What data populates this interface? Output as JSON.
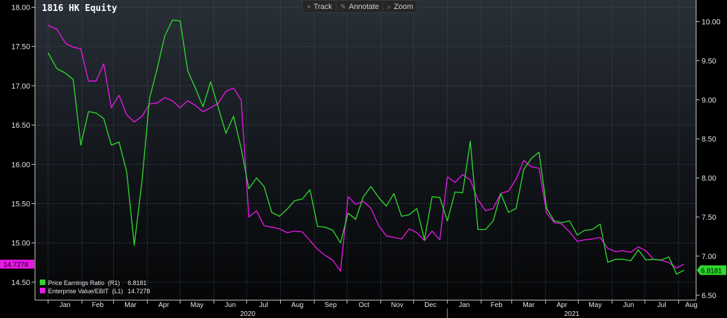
{
  "toolbar": {
    "track_label": "Track",
    "annotate_label": "Annotate",
    "zoom_label": "Zoom",
    "track_icon": "crosshair-icon",
    "annotate_icon": "pencil-icon",
    "zoom_icon": "magnifier-icon"
  },
  "chart_data": {
    "type": "line",
    "title": "1816 HK Equity",
    "grid": true,
    "legend_position": "bottom-left",
    "left_axis": {
      "range": [
        14.35,
        18.0
      ],
      "ticks": [
        "18.00",
        "17.50",
        "17.00",
        "16.50",
        "16.00",
        "15.50",
        "15.00",
        "14.50"
      ]
    },
    "right_axis": {
      "range": [
        6.45,
        10.2
      ],
      "ticks": [
        "10.00",
        "9.50",
        "9.00",
        "8.50",
        "8.00",
        "7.50",
        "7.00",
        "6.50"
      ]
    },
    "x_axis": {
      "months": [
        "Jan",
        "Feb",
        "Mar",
        "Apr",
        "May",
        "Jun",
        "Jul",
        "Aug",
        "Sep",
        "Oct",
        "Nov",
        "Dec",
        "Jan",
        "Feb",
        "Mar",
        "Apr",
        "May",
        "Jun",
        "Jul",
        "Aug"
      ],
      "years": [
        "2020",
        "2021"
      ]
    },
    "series": [
      {
        "name": "Price Earnings Ratio",
        "axis": "R1",
        "legend_label": "Price Earnings Ratio  (R1)",
        "last_value": "6.8181",
        "color": "#2ed62e",
        "points": [
          [
            "2020-01-01",
            9.6
          ],
          [
            "2020-01-09",
            9.4
          ],
          [
            "2020-01-17",
            9.34
          ],
          [
            "2020-01-24",
            9.26
          ],
          [
            "2020-01-31",
            8.42
          ],
          [
            "2020-02-07",
            8.85
          ],
          [
            "2020-02-14",
            8.83
          ],
          [
            "2020-02-21",
            8.76
          ],
          [
            "2020-02-28",
            8.42
          ],
          [
            "2020-03-06",
            8.46
          ],
          [
            "2020-03-13",
            8.08
          ],
          [
            "2020-03-20",
            7.14
          ],
          [
            "2020-03-27",
            7.95
          ],
          [
            "2020-04-03",
            9.02
          ],
          [
            "2020-04-10",
            9.4
          ],
          [
            "2020-04-17",
            9.82
          ],
          [
            "2020-04-24",
            10.02
          ],
          [
            "2020-05-01",
            10.01
          ],
          [
            "2020-05-08",
            9.37
          ],
          [
            "2020-05-15",
            9.15
          ],
          [
            "2020-05-22",
            8.91
          ],
          [
            "2020-05-29",
            9.23
          ],
          [
            "2020-06-05",
            8.9
          ],
          [
            "2020-06-12",
            8.57
          ],
          [
            "2020-06-19",
            8.79
          ],
          [
            "2020-06-26",
            8.38
          ],
          [
            "2020-07-03",
            7.86
          ],
          [
            "2020-07-10",
            8.0
          ],
          [
            "2020-07-17",
            7.89
          ],
          [
            "2020-07-24",
            7.56
          ],
          [
            "2020-07-31",
            7.51
          ],
          [
            "2020-08-07",
            7.6
          ],
          [
            "2020-08-14",
            7.71
          ],
          [
            "2020-08-21",
            7.73
          ],
          [
            "2020-08-28",
            7.85
          ],
          [
            "2020-09-04",
            7.38
          ],
          [
            "2020-09-11",
            7.37
          ],
          [
            "2020-09-18",
            7.33
          ],
          [
            "2020-09-25",
            7.17
          ],
          [
            "2020-10-02",
            7.55
          ],
          [
            "2020-10-09",
            7.47
          ],
          [
            "2020-10-16",
            7.76
          ],
          [
            "2020-10-23",
            7.89
          ],
          [
            "2020-10-30",
            7.75
          ],
          [
            "2020-11-06",
            7.64
          ],
          [
            "2020-11-13",
            7.8
          ],
          [
            "2020-11-20",
            7.51
          ],
          [
            "2020-11-27",
            7.53
          ],
          [
            "2020-12-04",
            7.61
          ],
          [
            "2020-12-11",
            7.21
          ],
          [
            "2020-12-18",
            7.76
          ],
          [
            "2020-12-25",
            7.75
          ],
          [
            "2021-01-01",
            7.45
          ],
          [
            "2021-01-08",
            7.82
          ],
          [
            "2021-01-15",
            7.81
          ],
          [
            "2021-01-22",
            8.47
          ],
          [
            "2021-01-29",
            7.34
          ],
          [
            "2021-02-05",
            7.34
          ],
          [
            "2021-02-12",
            7.45
          ],
          [
            "2021-02-19",
            7.8
          ],
          [
            "2021-02-26",
            7.56
          ],
          [
            "2021-03-05",
            7.61
          ],
          [
            "2021-03-12",
            8.11
          ],
          [
            "2021-03-19",
            8.25
          ],
          [
            "2021-03-26",
            8.33
          ],
          [
            "2021-04-02",
            7.61
          ],
          [
            "2021-04-09",
            7.45
          ],
          [
            "2021-04-16",
            7.43
          ],
          [
            "2021-04-23",
            7.45
          ],
          [
            "2021-04-30",
            7.27
          ],
          [
            "2021-05-07",
            7.33
          ],
          [
            "2021-05-14",
            7.34
          ],
          [
            "2021-05-21",
            7.41
          ],
          [
            "2021-05-28",
            6.92
          ],
          [
            "2021-06-04",
            6.96
          ],
          [
            "2021-06-11",
            6.96
          ],
          [
            "2021-06-18",
            6.94
          ],
          [
            "2021-06-25",
            7.08
          ],
          [
            "2021-07-02",
            6.95
          ],
          [
            "2021-07-09",
            6.96
          ],
          [
            "2021-07-16",
            6.95
          ],
          [
            "2021-07-23",
            6.99
          ],
          [
            "2021-07-30",
            6.77
          ],
          [
            "2021-08-06",
            6.82
          ]
        ]
      },
      {
        "name": "Enterprise Value/EBIT",
        "axis": "L1",
        "legend_label": "Enterprise Value/EBIT  (L1)",
        "last_value": "14.7278",
        "color": "#e619e6",
        "points": [
          [
            "2020-01-01",
            17.77
          ],
          [
            "2020-01-09",
            17.72
          ],
          [
            "2020-01-17",
            17.54
          ],
          [
            "2020-01-24",
            17.49
          ],
          [
            "2020-01-31",
            17.47
          ],
          [
            "2020-02-07",
            17.06
          ],
          [
            "2020-02-14",
            17.06
          ],
          [
            "2020-02-21",
            17.28
          ],
          [
            "2020-02-28",
            16.72
          ],
          [
            "2020-03-06",
            16.88
          ],
          [
            "2020-03-13",
            16.63
          ],
          [
            "2020-03-20",
            16.54
          ],
          [
            "2020-03-27",
            16.61
          ],
          [
            "2020-04-03",
            16.77
          ],
          [
            "2020-04-10",
            16.78
          ],
          [
            "2020-04-17",
            16.85
          ],
          [
            "2020-04-24",
            16.81
          ],
          [
            "2020-05-01",
            16.72
          ],
          [
            "2020-05-08",
            16.81
          ],
          [
            "2020-05-15",
            16.75
          ],
          [
            "2020-05-22",
            16.67
          ],
          [
            "2020-05-29",
            16.72
          ],
          [
            "2020-06-05",
            16.78
          ],
          [
            "2020-06-12",
            16.93
          ],
          [
            "2020-06-19",
            16.97
          ],
          [
            "2020-06-26",
            16.82
          ],
          [
            "2020-07-03",
            15.33
          ],
          [
            "2020-07-10",
            15.41
          ],
          [
            "2020-07-17",
            15.22
          ],
          [
            "2020-07-24",
            15.2
          ],
          [
            "2020-07-31",
            15.18
          ],
          [
            "2020-08-07",
            15.13
          ],
          [
            "2020-08-14",
            15.15
          ],
          [
            "2020-08-21",
            15.14
          ],
          [
            "2020-08-28",
            15.03
          ],
          [
            "2020-09-04",
            14.92
          ],
          [
            "2020-09-11",
            14.84
          ],
          [
            "2020-09-18",
            14.78
          ],
          [
            "2020-09-25",
            14.64
          ],
          [
            "2020-10-02",
            15.59
          ],
          [
            "2020-10-09",
            15.49
          ],
          [
            "2020-10-16",
            15.53
          ],
          [
            "2020-10-23",
            15.44
          ],
          [
            "2020-10-30",
            15.22
          ],
          [
            "2020-11-06",
            15.09
          ],
          [
            "2020-11-13",
            15.07
          ],
          [
            "2020-11-20",
            15.05
          ],
          [
            "2020-11-27",
            15.18
          ],
          [
            "2020-12-04",
            15.13
          ],
          [
            "2020-12-11",
            15.03
          ],
          [
            "2020-12-18",
            15.15
          ],
          [
            "2020-12-25",
            15.04
          ],
          [
            "2021-01-01",
            15.84
          ],
          [
            "2021-01-08",
            15.77
          ],
          [
            "2021-01-15",
            15.87
          ],
          [
            "2021-01-22",
            15.8
          ],
          [
            "2021-01-29",
            15.55
          ],
          [
            "2021-02-05",
            15.41
          ],
          [
            "2021-02-12",
            15.44
          ],
          [
            "2021-02-19",
            15.63
          ],
          [
            "2021-02-26",
            15.66
          ],
          [
            "2021-03-05",
            15.81
          ],
          [
            "2021-03-12",
            16.05
          ],
          [
            "2021-03-19",
            15.97
          ],
          [
            "2021-03-26",
            15.95
          ],
          [
            "2021-04-02",
            15.38
          ],
          [
            "2021-04-09",
            15.26
          ],
          [
            "2021-04-16",
            15.24
          ],
          [
            "2021-04-23",
            15.14
          ],
          [
            "2021-04-30",
            15.02
          ],
          [
            "2021-05-07",
            15.04
          ],
          [
            "2021-05-14",
            15.05
          ],
          [
            "2021-05-21",
            15.07
          ],
          [
            "2021-05-28",
            14.93
          ],
          [
            "2021-06-04",
            14.89
          ],
          [
            "2021-06-11",
            14.9
          ],
          [
            "2021-06-18",
            14.88
          ],
          [
            "2021-06-25",
            14.95
          ],
          [
            "2021-07-02",
            14.9
          ],
          [
            "2021-07-09",
            14.79
          ],
          [
            "2021-07-16",
            14.78
          ],
          [
            "2021-07-23",
            14.75
          ],
          [
            "2021-07-30",
            14.68
          ],
          [
            "2021-08-06",
            14.73
          ]
        ]
      }
    ]
  }
}
